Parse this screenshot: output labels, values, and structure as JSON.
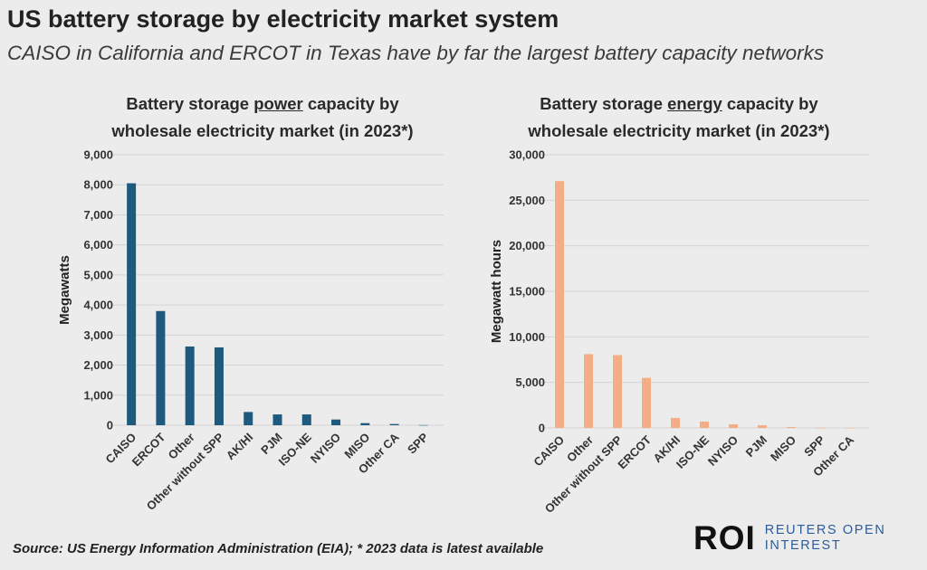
{
  "header": {
    "title": "US battery storage by electricity market system",
    "subtitle": "CAISO in California and ERCOT in Texas have by far the largest battery capacity networks"
  },
  "footer": {
    "source": "Source: US Energy Information Administration (EIA); * 2023 data is latest available",
    "logo_mark": "ROI",
    "logo_line1": "REUTERS OPEN",
    "logo_line2": "INTEREST"
  },
  "chart_data": [
    {
      "type": "bar",
      "title_pre": "Battery storage ",
      "title_emph": "power",
      "title_post": " capacity by",
      "title_line2": "wholesale electricity market (in 2023*)",
      "ylabel": "Megawatts",
      "xlabel": "",
      "ylim": [
        0,
        9000
      ],
      "yticks": [
        0,
        1000,
        2000,
        3000,
        4000,
        5000,
        6000,
        7000,
        8000,
        9000
      ],
      "ytick_labels": [
        "0",
        "1,000",
        "2,000",
        "3,000",
        "4,000",
        "5,000",
        "6,000",
        "7,000",
        "8,000",
        "9,000"
      ],
      "categories": [
        "CAISO",
        "ERCOT",
        "Other",
        "Other without SPP",
        "AK/HI",
        "PJM",
        "ISO-NE",
        "NYISO",
        "MISO",
        "Other CA",
        "SPP"
      ],
      "values": [
        8050,
        3800,
        2620,
        2590,
        440,
        360,
        360,
        190,
        70,
        40,
        5
      ],
      "color": "#1d5a7e",
      "grid": true
    },
    {
      "type": "bar",
      "title_pre": "Battery storage ",
      "title_emph": "energy",
      "title_post": " capacity by",
      "title_line2": "wholesale electricity market (in 2023*)",
      "ylabel": "Megawatt hours",
      "xlabel": "",
      "ylim": [
        0,
        30000
      ],
      "yticks": [
        0,
        5000,
        10000,
        15000,
        20000,
        25000,
        30000
      ],
      "ytick_labels": [
        "0",
        "5,000",
        "10,000",
        "15,000",
        "20,000",
        "25,000",
        "30,000"
      ],
      "categories": [
        "CAISO",
        "Other",
        "Other without SPP",
        "ERCOT",
        "AK/HI",
        "ISO-NE",
        "NYISO",
        "PJM",
        "MISO",
        "SPP",
        "Other CA"
      ],
      "values": [
        27100,
        8100,
        8000,
        5500,
        1100,
        700,
        400,
        300,
        100,
        20,
        10
      ],
      "color": "#f4ae86",
      "grid": true
    }
  ]
}
